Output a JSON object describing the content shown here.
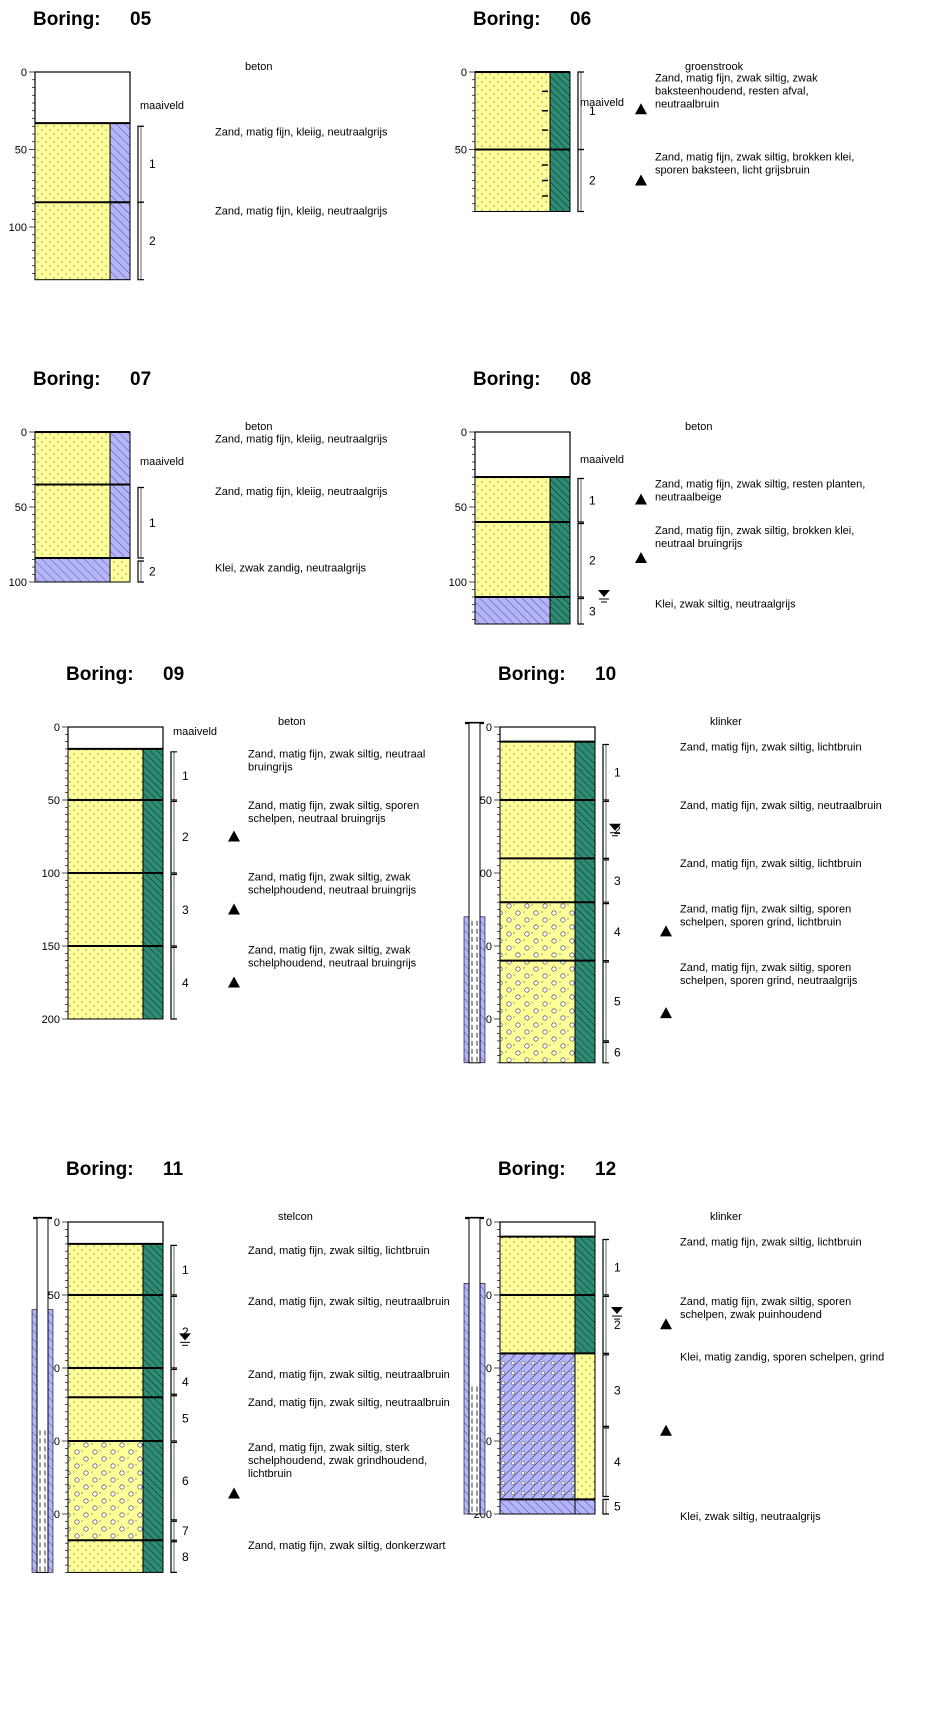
{
  "borings": [
    {
      "title": "Boring:",
      "id": "05",
      "depth_ticks": [
        "0",
        "50",
        "100"
      ],
      "surface_label": "beton",
      "maaiveld_label": "maaiveld",
      "layers": [
        {
          "pattern": "surface",
          "from": 0,
          "to": 33
        },
        {
          "pattern": "sand",
          "side": "clay",
          "from": 33,
          "to": 84
        },
        {
          "pattern": "sand",
          "side": "clay",
          "from": 84,
          "to": 134
        }
      ],
      "samples": [
        {
          "label": "1",
          "from": 35,
          "to": 84
        },
        {
          "label": "2",
          "from": 84,
          "to": 134
        }
      ],
      "descriptions": [
        {
          "lines": [
            "Zand, matig fijn, kleiig, neutraalgrijs"
          ],
          "depth": 41
        },
        {
          "lines": [
            "Zand, matig fijn, kleiig, neutraalgrijs"
          ],
          "depth": 92
        }
      ],
      "markers": [],
      "water_marks": [],
      "standpipe": null
    },
    {
      "title": "Boring:",
      "id": "06",
      "depth_ticks": [
        "0",
        "50"
      ],
      "surface_label": "groenstrook",
      "maaiveld_label": "maaiveld",
      "layers": [
        {
          "pattern": "sand",
          "side": "silt",
          "from": 0,
          "to": 50,
          "roots": true
        },
        {
          "pattern": "sand",
          "side": "silt",
          "from": 50,
          "to": 90,
          "roots": true
        }
      ],
      "samples": [
        {
          "label": "1",
          "from": 0,
          "to": 50
        },
        {
          "label": "2",
          "from": 50,
          "to": 90
        }
      ],
      "descriptions": [
        {
          "lines": [
            "Zand, matig fijn, zwak siltig, zwak",
            "baksteenhoudend, resten afval,",
            "neutraalbruin"
          ],
          "depth": 6
        },
        {
          "lines": [
            "Zand, matig fijn, zwak siltig, brokken klei,",
            "sporen baksteen, licht grijsbruin"
          ],
          "depth": 57
        }
      ],
      "markers": [
        {
          "depth": 24
        },
        {
          "depth": 70
        }
      ],
      "water_marks": [],
      "standpipe": null
    },
    {
      "title": "Boring:",
      "id": "07",
      "depth_ticks": [
        "0",
        "50",
        "100"
      ],
      "surface_label": "beton",
      "maaiveld_label": "maaiveld",
      "layers": [
        {
          "pattern": "sand",
          "side": "clay",
          "from": 0,
          "to": 35
        },
        {
          "pattern": "sand",
          "side": "clay",
          "from": 35,
          "to": 84
        },
        {
          "pattern": "clay",
          "side": "sand",
          "from": 84,
          "to": 100
        }
      ],
      "samples": [
        {
          "label": "1",
          "from": 37,
          "to": 84
        },
        {
          "label": "2",
          "from": 86,
          "to": 100
        }
      ],
      "descriptions": [
        {
          "lines": [
            "Zand, matig fijn, kleiig, neutraalgrijs"
          ],
          "depth": 7
        },
        {
          "lines": [
            "Zand, matig fijn, kleiig, neutraalgrijs"
          ],
          "depth": 42
        },
        {
          "lines": [
            "Klei, zwak zandig, neutraalgrijs"
          ],
          "depth": 93
        }
      ],
      "markers": [],
      "water_marks": [],
      "standpipe": null
    },
    {
      "title": "Boring:",
      "id": "08",
      "depth_ticks": [
        "0",
        "50",
        "100"
      ],
      "surface_label": "beton",
      "maaiveld_label": "maaiveld",
      "layers": [
        {
          "pattern": "surface",
          "from": 0,
          "to": 30
        },
        {
          "pattern": "sand",
          "side": "silt",
          "from": 30,
          "to": 60
        },
        {
          "pattern": "sand",
          "side": "silt",
          "from": 60,
          "to": 110
        },
        {
          "pattern": "clay",
          "side": "silt",
          "from": 110,
          "to": 128
        }
      ],
      "samples": [
        {
          "label": "1",
          "from": 31,
          "to": 60
        },
        {
          "label": "2",
          "from": 61,
          "to": 110
        },
        {
          "label": "3",
          "from": 111,
          "to": 128
        }
      ],
      "descriptions": [
        {
          "lines": [
            "Zand, matig fijn, zwak siltig, resten planten,",
            "neutraalbeige"
          ],
          "depth": 37
        },
        {
          "lines": [
            "Zand, matig fijn, zwak siltig, brokken klei,",
            "neutraal bruingrijs"
          ],
          "depth": 68
        },
        {
          "lines": [
            "Klei, zwak siltig, neutraalgrijs"
          ],
          "depth": 117
        }
      ],
      "markers": [
        {
          "depth": 45
        },
        {
          "depth": 84
        }
      ],
      "water_marks": [
        {
          "depth": 108,
          "offset": 34
        }
      ],
      "standpipe": null
    },
    {
      "title": "Boring:",
      "id": "09",
      "depth_ticks": [
        "0",
        "50",
        "100",
        "150",
        "200"
      ],
      "surface_label": "beton",
      "maaiveld_label": "maaiveld",
      "layers": [
        {
          "pattern": "surface",
          "from": 0,
          "to": 15
        },
        {
          "pattern": "sand",
          "side": "silt",
          "from": 15,
          "to": 50
        },
        {
          "pattern": "sand",
          "side": "silt",
          "from": 50,
          "to": 100
        },
        {
          "pattern": "sand",
          "side": "silt",
          "from": 100,
          "to": 150
        },
        {
          "pattern": "sand",
          "side": "silt",
          "from": 150,
          "to": 200
        }
      ],
      "samples": [
        {
          "label": "1",
          "from": 17,
          "to": 50
        },
        {
          "label": "2",
          "from": 51,
          "to": 100
        },
        {
          "label": "3",
          "from": 101,
          "to": 150
        },
        {
          "label": "4",
          "from": 151,
          "to": 200
        }
      ],
      "descriptions": [
        {
          "lines": [
            "Zand, matig fijn, zwak siltig, neutraal",
            "bruingrijs"
          ],
          "depth": 21
        },
        {
          "lines": [
            "Zand, matig fijn, zwak siltig, sporen",
            "schelpen, neutraal bruingrijs"
          ],
          "depth": 56
        },
        {
          "lines": [
            "Zand, matig fijn, zwak siltig, zwak",
            "schelphoudend, neutraal bruingrijs"
          ],
          "depth": 105
        },
        {
          "lines": [
            "Zand, matig fijn, zwak siltig, zwak",
            "schelphoudend, neutraal bruingrijs"
          ],
          "depth": 155
        }
      ],
      "markers": [
        {
          "depth": 75
        },
        {
          "depth": 125
        },
        {
          "depth": 175
        }
      ],
      "water_marks": [],
      "standpipe": null
    },
    {
      "title": "Boring:",
      "id": "10",
      "depth_ticks": [
        "0",
        "50",
        "100",
        "150",
        "200"
      ],
      "surface_label": "klinker",
      "maaiveld_label": "",
      "layers": [
        {
          "pattern": "surface",
          "from": 0,
          "to": 10
        },
        {
          "pattern": "sand",
          "side": "silt",
          "from": 10,
          "to": 50
        },
        {
          "pattern": "sand",
          "side": "silt",
          "from": 50,
          "to": 90
        },
        {
          "pattern": "sand",
          "side": "silt",
          "from": 90,
          "to": 120
        },
        {
          "pattern": "gravel",
          "side": "silt",
          "from": 120,
          "to": 160
        },
        {
          "pattern": "gravel",
          "side": "silt",
          "from": 160,
          "to": 230
        }
      ],
      "samples": [
        {
          "label": "1",
          "from": 12,
          "to": 50
        },
        {
          "label": "2",
          "from": 51,
          "to": 90
        },
        {
          "label": "3",
          "from": 91,
          "to": 120
        },
        {
          "label": "4",
          "from": 121,
          "to": 160
        },
        {
          "label": "5",
          "from": 161,
          "to": 215
        },
        {
          "label": "6",
          "from": 216,
          "to": 230
        }
      ],
      "descriptions": [
        {
          "lines": [
            "Zand, matig fijn, zwak siltig, lichtbruin"
          ],
          "depth": 16
        },
        {
          "lines": [
            "Zand, matig fijn, zwak siltig, neutraalbruin"
          ],
          "depth": 56
        },
        {
          "lines": [
            "Zand, matig fijn, zwak siltig, lichtbruin"
          ],
          "depth": 96
        },
        {
          "lines": [
            "Zand, matig fijn, zwak siltig, sporen",
            "schelpen, sporen grind, lichtbruin"
          ],
          "depth": 127
        },
        {
          "lines": [
            "Zand, matig fijn, zwak siltig, sporen",
            "schelpen, sporen grind, neutraalgrijs"
          ],
          "depth": 167
        }
      ],
      "markers": [
        {
          "depth": 140
        },
        {
          "depth": 196
        }
      ],
      "water_marks": [
        {
          "depth": 69,
          "offset": 20
        }
      ],
      "standpipe": {
        "from": 0,
        "to": 230,
        "screen_from": 130,
        "sand_from": 130
      }
    },
    {
      "title": "Boring:",
      "id": "11",
      "depth_ticks": [
        "0",
        "50",
        "100",
        "150",
        "200"
      ],
      "surface_label": "stelcon",
      "maaiveld_label": "",
      "layers": [
        {
          "pattern": "surface",
          "from": 0,
          "to": 15
        },
        {
          "pattern": "sand",
          "side": "silt",
          "from": 15,
          "to": 50
        },
        {
          "pattern": "sand",
          "side": "silt",
          "from": 50,
          "to": 100
        },
        {
          "pattern": "sand",
          "side": "silt",
          "from": 100,
          "to": 120
        },
        {
          "pattern": "sand",
          "side": "silt",
          "from": 120,
          "to": 150
        },
        {
          "pattern": "gravel",
          "side": "silt",
          "from": 150,
          "to": 218
        },
        {
          "pattern": "sand",
          "side": "silt",
          "from": 218,
          "to": 240
        }
      ],
      "samples": [
        {
          "label": "1",
          "from": 16,
          "to": 50
        },
        {
          "label": "2",
          "from": 51,
          "to": 100
        },
        {
          "label": "4",
          "from": 101,
          "to": 118
        },
        {
          "label": "5",
          "from": 119,
          "to": 150
        },
        {
          "label": "6",
          "from": 151,
          "to": 204
        },
        {
          "label": "7",
          "from": 205,
          "to": 218
        },
        {
          "label": "8",
          "from": 219,
          "to": 240
        }
      ],
      "descriptions": [
        {
          "lines": [
            "Zand, matig fijn, zwak siltig, lichtbruin"
          ],
          "depth": 22
        },
        {
          "lines": [
            "Zand, matig fijn, zwak siltig, neutraalbruin"
          ],
          "depth": 57
        },
        {
          "lines": [
            "Zand, matig fijn, zwak siltig, neutraalbruin"
          ],
          "depth": 107
        },
        {
          "lines": [
            "Zand, matig fijn, zwak siltig, neutraalbruin"
          ],
          "depth": 126
        },
        {
          "lines": [
            "Zand, matig fijn, zwak siltig, sterk",
            "schelphoudend, zwak grindhoudend,",
            "lichtbruin"
          ],
          "depth": 157
        },
        {
          "lines": [
            "Zand, matig fijn, zwak siltig, donkerzwart"
          ],
          "depth": 224
        }
      ],
      "markers": [
        {
          "depth": 186
        }
      ],
      "water_marks": [
        {
          "depth": 79,
          "offset": 22
        }
      ],
      "standpipe": {
        "from": 0,
        "to": 240,
        "screen_from": 140,
        "sand_from": 60
      }
    },
    {
      "title": "Boring:",
      "id": "12",
      "depth_ticks": [
        "0",
        "50",
        "100",
        "150",
        "200"
      ],
      "surface_label": "klinker",
      "maaiveld_label": "",
      "layers": [
        {
          "pattern": "surface",
          "from": 0,
          "to": 10
        },
        {
          "pattern": "sand",
          "side": "silt",
          "from": 10,
          "to": 50
        },
        {
          "pattern": "sand",
          "side": "silt",
          "from": 50,
          "to": 90
        },
        {
          "pattern": "claygravel",
          "side": "sand",
          "from": 90,
          "to": 190
        },
        {
          "pattern": "clay",
          "side": "clay",
          "from": 190,
          "to": 200
        }
      ],
      "samples": [
        {
          "label": "1",
          "from": 12,
          "to": 50
        },
        {
          "label": "2",
          "from": 51,
          "to": 90
        },
        {
          "label": "3",
          "from": 91,
          "to": 140
        },
        {
          "label": "4",
          "from": 141,
          "to": 188
        },
        {
          "label": "5",
          "from": 190,
          "to": 200
        }
      ],
      "descriptions": [
        {
          "lines": [
            "Zand, matig fijn, zwak siltig, lichtbruin"
          ],
          "depth": 16
        },
        {
          "lines": [
            "Zand, matig fijn, zwak siltig, sporen",
            "schelpen, zwak puinhoudend"
          ],
          "depth": 57
        },
        {
          "lines": [
            "Klei, matig zandig, sporen schelpen, grind"
          ],
          "depth": 95
        },
        {
          "lines": [
            "Klei, zwak siltig, neutraalgrijs"
          ],
          "depth": 204
        }
      ],
      "markers": [
        {
          "depth": 70
        },
        {
          "depth": 143
        }
      ],
      "water_marks": [
        {
          "depth": 61,
          "offset": 22
        }
      ],
      "standpipe": {
        "from": 0,
        "to": 200,
        "screen_from": 110,
        "sand_from": 42
      }
    }
  ],
  "colors": {
    "sand": "#ffff99",
    "clay": "#b4b4ff",
    "silt": "#2e8b74",
    "tick": "#000000"
  }
}
